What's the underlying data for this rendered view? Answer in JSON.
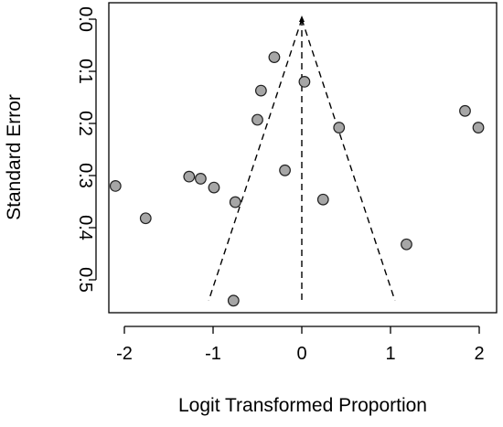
{
  "chart_data": {
    "type": "scatter",
    "title": "",
    "xlabel": "Logit Transformed Proportion",
    "ylabel": "Standard Error",
    "xlim": [
      -2.2,
      2.1
    ],
    "ylim": [
      0,
      0.54
    ],
    "y_reversed": true,
    "grid": false,
    "x_ticks": [
      -2,
      -1,
      0,
      1,
      2
    ],
    "y_ticks": [
      0.0,
      0.1,
      0.2,
      0.3,
      0.4,
      0.5
    ],
    "x_tick_labels": [
      "-2",
      "-1",
      "0",
      "1",
      "2"
    ],
    "y_tick_labels": [
      "0.0",
      "0.1",
      "0.2",
      "0.3",
      "0.4",
      "0.5"
    ],
    "funnel": {
      "center": 0,
      "apex_se": 0,
      "left_base": [
        -1.05,
        0.54
      ],
      "right_base": [
        1.05,
        0.54
      ],
      "line_style": "dashed"
    },
    "points": [
      {
        "x": -0.31,
        "y": 0.073
      },
      {
        "x": -0.46,
        "y": 0.137
      },
      {
        "x": 0.03,
        "y": 0.12
      },
      {
        "x": -0.5,
        "y": 0.193
      },
      {
        "x": 0.42,
        "y": 0.208
      },
      {
        "x": 1.84,
        "y": 0.176
      },
      {
        "x": 1.99,
        "y": 0.208
      },
      {
        "x": -0.19,
        "y": 0.29
      },
      {
        "x": -1.27,
        "y": 0.302
      },
      {
        "x": -1.14,
        "y": 0.306
      },
      {
        "x": -0.99,
        "y": 0.323
      },
      {
        "x": -2.1,
        "y": 0.32
      },
      {
        "x": -0.75,
        "y": 0.351
      },
      {
        "x": 0.24,
        "y": 0.346
      },
      {
        "x": -1.76,
        "y": 0.382
      },
      {
        "x": 1.18,
        "y": 0.432
      },
      {
        "x": -0.77,
        "y": 0.54
      }
    ],
    "marker_color": "#a6a6a6",
    "marker_edge_color": "#222222"
  }
}
